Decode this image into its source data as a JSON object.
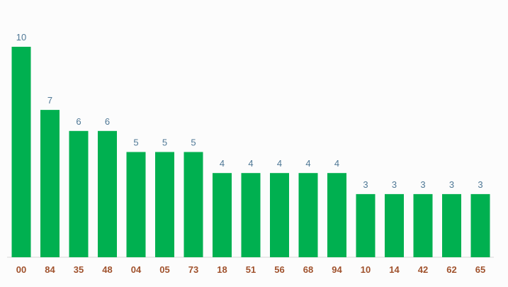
{
  "chart_data": {
    "type": "bar",
    "categories": [
      "00",
      "84",
      "35",
      "48",
      "04",
      "05",
      "73",
      "18",
      "51",
      "56",
      "68",
      "94",
      "10",
      "14",
      "42",
      "62",
      "65"
    ],
    "values": [
      10,
      7,
      6,
      6,
      5,
      5,
      5,
      4,
      4,
      4,
      4,
      4,
      3,
      3,
      3,
      3,
      3
    ],
    "title": "",
    "xlabel": "",
    "ylabel": "",
    "ylim": [
      0,
      10
    ],
    "grid": false,
    "legend": "none",
    "bar_color": "#00b050",
    "value_label_color": "#4f7896",
    "tick_label_color": "#a0522d"
  }
}
